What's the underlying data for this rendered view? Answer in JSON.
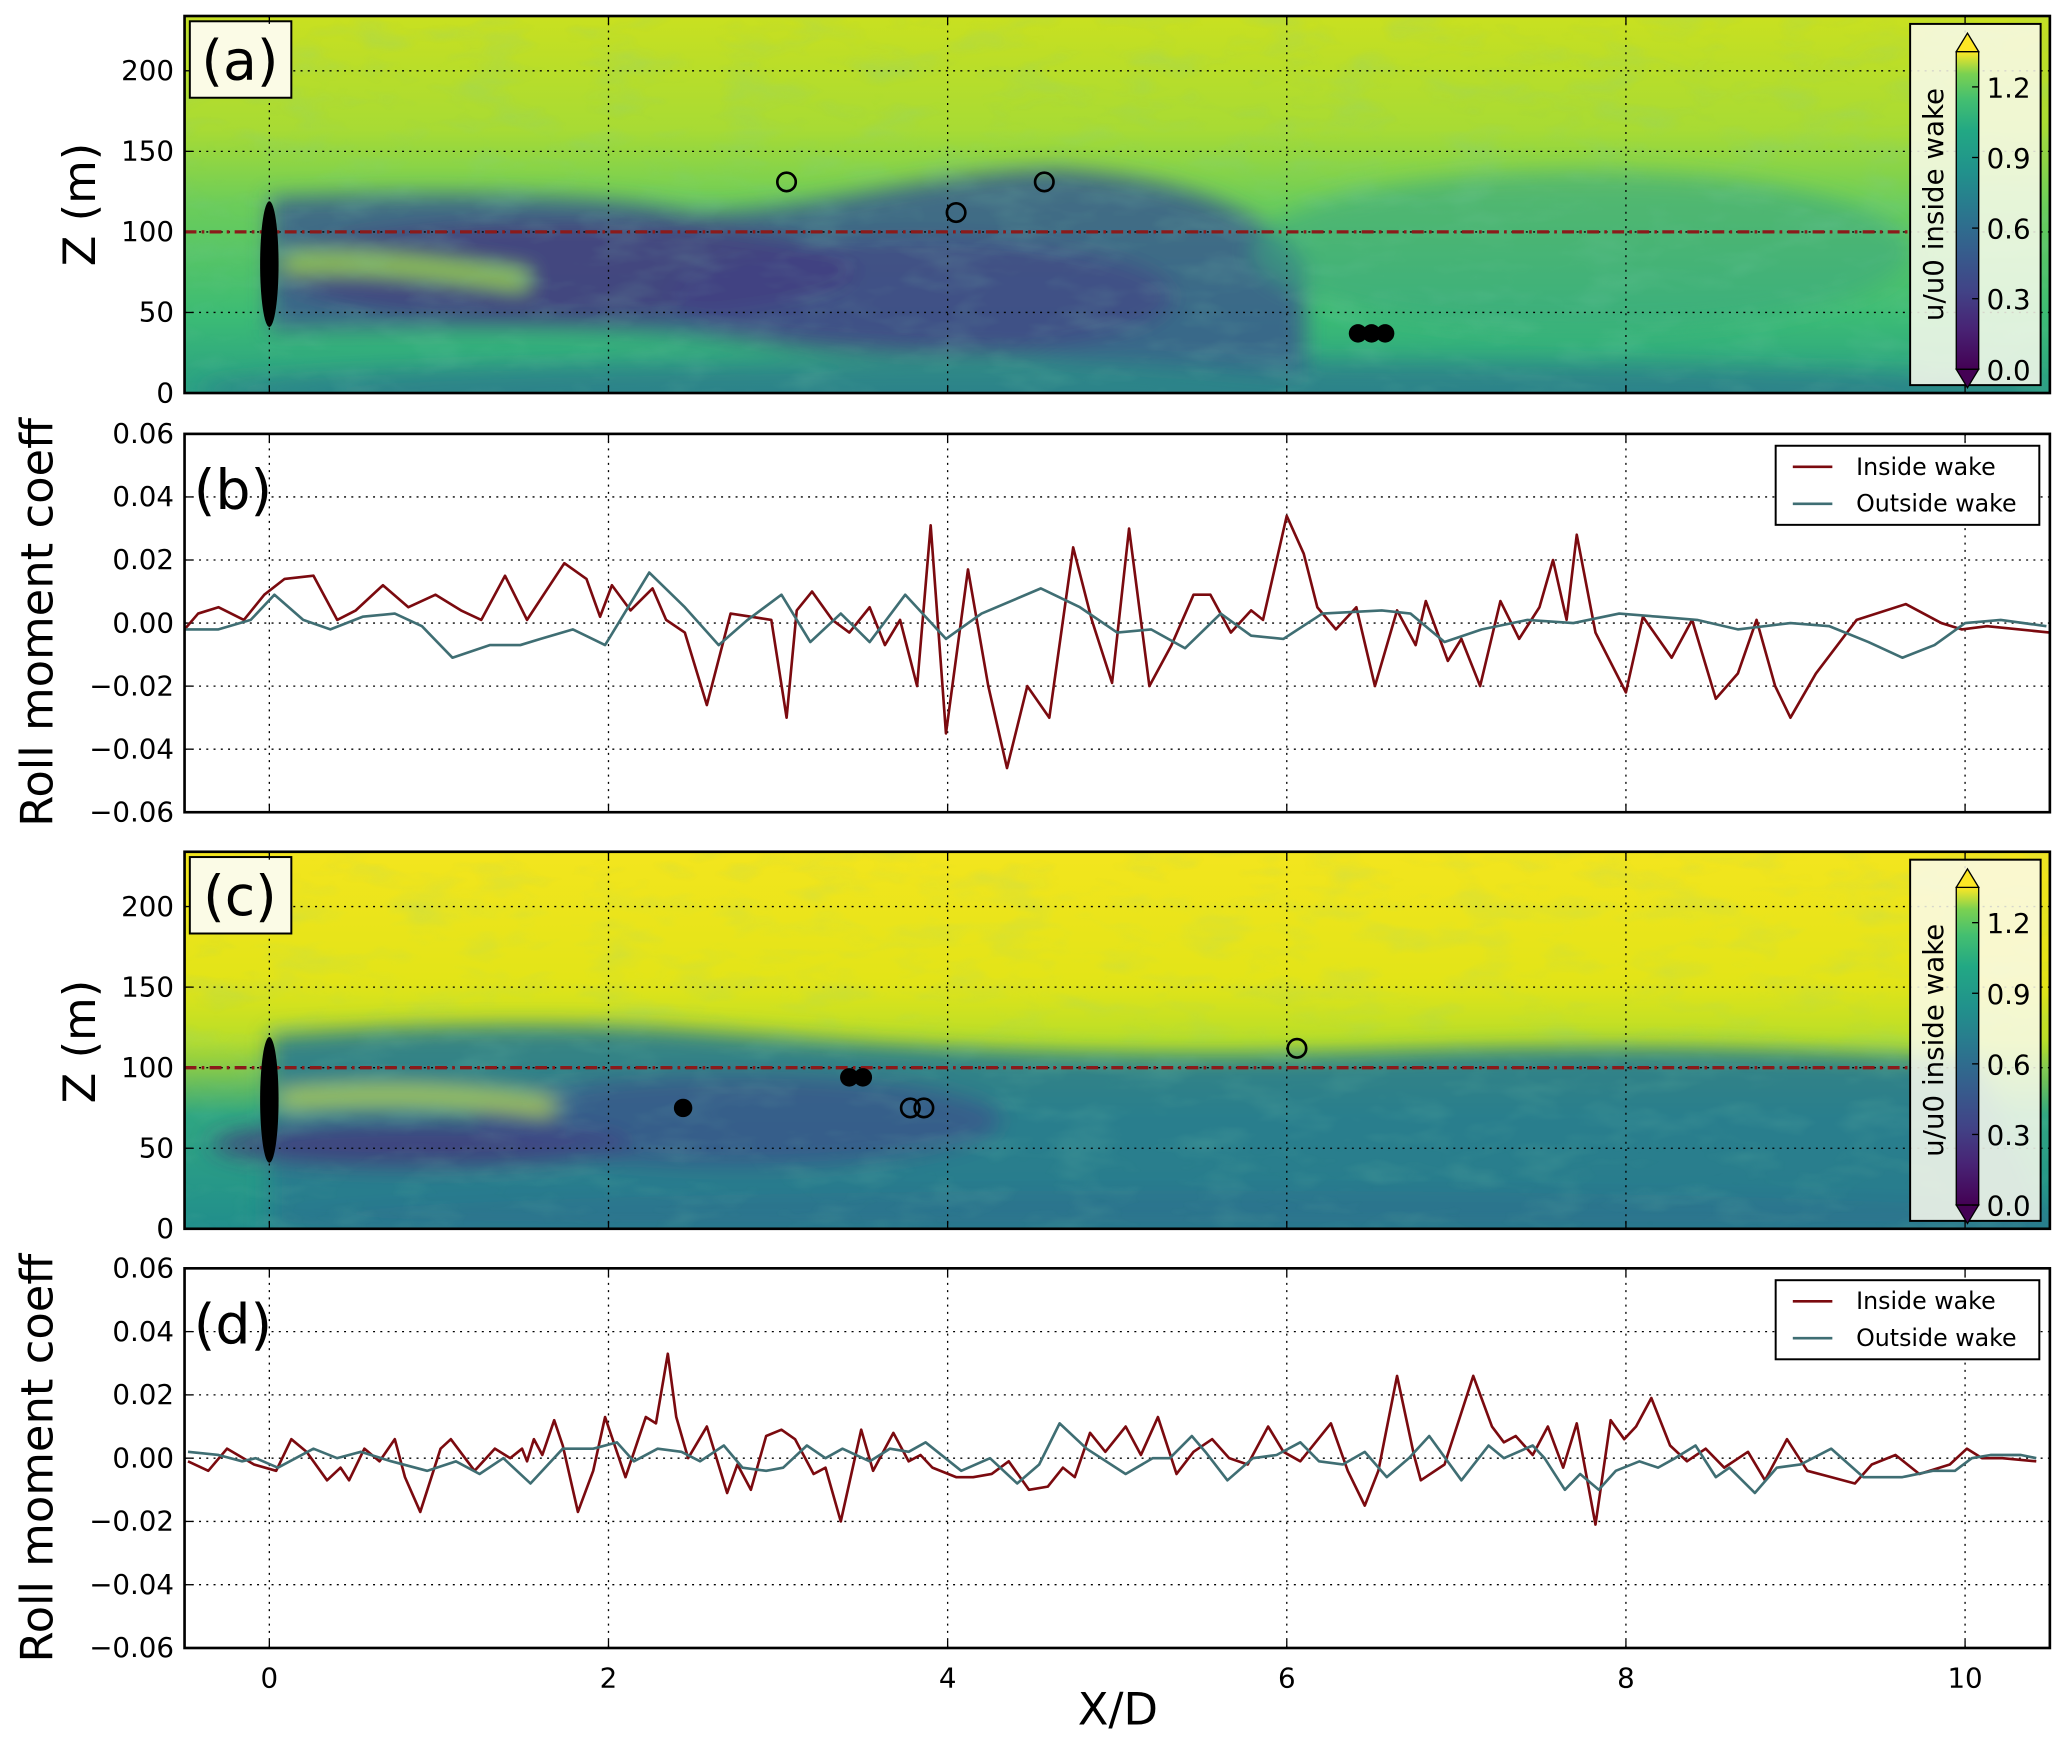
{
  "figure": {
    "xlabel": "X/D",
    "colorbar_label": "u/u0 inside wake",
    "colorbar_ticks": [
      "0.0",
      "0.3",
      "0.6",
      "0.9",
      "1.2"
    ],
    "colormap": "viridis",
    "panel_labels": [
      "(a)",
      "(b)",
      "(c)",
      "(d)"
    ],
    "colors": {
      "inside_wake": "#7b0a0f",
      "outside_wake": "#3f6e73",
      "hub_line": "#8b1a1a"
    }
  },
  "chart_data": [
    {
      "panel": "(a)",
      "type": "heatmap",
      "ylabel": "Z (m)",
      "xlim": [
        -0.5,
        10.5
      ],
      "ylim": [
        0,
        234
      ],
      "yticks": [
        "0",
        "50",
        "100",
        "150",
        "200"
      ],
      "grid": true,
      "colorbar": {
        "label": "u/u0 inside wake",
        "range": [
          0.0,
          1.35
        ],
        "ticks": [
          0.0,
          0.3,
          0.6,
          0.9,
          1.2
        ],
        "extend": "both"
      },
      "hub_height_line": 100,
      "turbine": {
        "x": 0,
        "z_bottom": 41,
        "z_top": 119
      },
      "open_markers": [
        {
          "x": 3.05,
          "z": 131
        },
        {
          "x": 4.05,
          "z": 112
        },
        {
          "x": 4.57,
          "z": 131
        }
      ],
      "filled_markers": [
        {
          "x": 6.42,
          "z": 37
        },
        {
          "x": 6.5,
          "z": 37
        },
        {
          "x": 6.58,
          "z": 37
        }
      ]
    },
    {
      "panel": "(b)",
      "type": "line",
      "ylabel": "Roll moment coeff",
      "xlim": [
        -0.5,
        10.5
      ],
      "ylim": [
        -0.06,
        0.06
      ],
      "yticks": [
        "0.06",
        "0.04",
        "0.02",
        "0.00",
        "−0.02",
        "−0.04",
        "−0.06"
      ],
      "grid": true,
      "legend": "top-right",
      "series": [
        {
          "name": "Inside wake",
          "x": [
            -0.5,
            -0.42,
            -0.3,
            -0.15,
            -0.03,
            0.09,
            0.26,
            0.4,
            0.51,
            0.67,
            0.82,
            0.98,
            1.13,
            1.25,
            1.39,
            1.52,
            1.74,
            1.87,
            1.95,
            2.02,
            2.13,
            2.26,
            2.34,
            2.45,
            2.58,
            2.72,
            2.84,
            2.96,
            3.05,
            3.11,
            3.2,
            3.32,
            3.42,
            3.54,
            3.63,
            3.72,
            3.82,
            3.9,
            3.99,
            4.12,
            4.24,
            4.35,
            4.47,
            4.6,
            4.74,
            4.85,
            4.97,
            5.07,
            5.19,
            5.32,
            5.45,
            5.55,
            5.67,
            5.79,
            5.86,
            6.0,
            6.1,
            6.18,
            6.29,
            6.41,
            6.52,
            6.65,
            6.76,
            6.82,
            6.95,
            7.03,
            7.14,
            7.26,
            7.37,
            7.49,
            7.57,
            7.65,
            7.71,
            7.82,
            8.0,
            8.1,
            8.27,
            8.39,
            8.53,
            8.66,
            8.77,
            8.88,
            8.97,
            9.12,
            9.36,
            9.65,
            9.86,
            9.98,
            10.13,
            10.5
          ],
          "y": [
            -0.002,
            0.003,
            0.005,
            0.001,
            0.009,
            0.014,
            0.015,
            0.001,
            0.004,
            0.012,
            0.005,
            0.009,
            0.004,
            0.001,
            0.015,
            0.001,
            0.019,
            0.014,
            0.002,
            0.012,
            0.004,
            0.011,
            0.001,
            -0.003,
            -0.026,
            0.003,
            0.002,
            0.001,
            -0.03,
            0.004,
            0.01,
            0.001,
            -0.003,
            0.005,
            -0.007,
            0.001,
            -0.02,
            0.031,
            -0.035,
            0.017,
            -0.02,
            -0.046,
            -0.02,
            -0.03,
            0.024,
            0.001,
            -0.019,
            0.03,
            -0.02,
            -0.007,
            0.009,
            0.009,
            -0.003,
            0.004,
            0.001,
            0.034,
            0.022,
            0.005,
            -0.002,
            0.005,
            -0.02,
            0.004,
            -0.007,
            0.007,
            -0.012,
            -0.005,
            -0.02,
            0.007,
            -0.005,
            0.005,
            0.02,
            0.001,
            0.028,
            -0.003,
            -0.022,
            0.002,
            -0.011,
            0.001,
            -0.024,
            -0.016,
            0.001,
            -0.02,
            -0.03,
            -0.016,
            0.001,
            0.006,
            0.0,
            -0.002,
            -0.001,
            -0.003
          ]
        },
        {
          "name": "Outside wake",
          "x": [
            -0.5,
            -0.3,
            -0.11,
            0.03,
            0.2,
            0.36,
            0.55,
            0.74,
            0.9,
            1.08,
            1.3,
            1.48,
            1.6,
            1.79,
            1.98,
            2.24,
            2.45,
            2.65,
            2.82,
            3.02,
            3.19,
            3.37,
            3.54,
            3.75,
            3.99,
            4.2,
            4.55,
            4.78,
            5.0,
            5.2,
            5.4,
            5.61,
            5.79,
            5.98,
            6.21,
            6.56,
            6.73,
            6.93,
            7.15,
            7.42,
            7.69,
            7.96,
            8.19,
            8.42,
            8.66,
            8.97,
            9.2,
            9.43,
            9.63,
            9.82,
            10.0,
            10.21,
            10.48
          ],
          "y": [
            -0.002,
            -0.002,
            0.001,
            0.009,
            0.001,
            -0.002,
            0.002,
            0.003,
            -0.001,
            -0.011,
            -0.007,
            -0.007,
            -0.005,
            -0.002,
            -0.007,
            0.016,
            0.005,
            -0.007,
            0.001,
            0.009,
            -0.006,
            0.003,
            -0.006,
            0.009,
            -0.005,
            0.003,
            0.011,
            0.005,
            -0.003,
            -0.002,
            -0.008,
            0.003,
            -0.004,
            -0.005,
            0.003,
            0.004,
            0.003,
            -0.006,
            -0.002,
            0.001,
            0.0,
            0.003,
            0.002,
            0.001,
            -0.002,
            0.0,
            -0.001,
            -0.006,
            -0.011,
            -0.007,
            0.0,
            0.001,
            -0.001
          ]
        }
      ]
    },
    {
      "panel": "(c)",
      "type": "heatmap",
      "ylabel": "Z (m)",
      "xlim": [
        -0.5,
        10.5
      ],
      "ylim": [
        0,
        234
      ],
      "yticks": [
        "0",
        "50",
        "100",
        "150",
        "200"
      ],
      "grid": true,
      "colorbar": {
        "label": "u/u0 inside wake",
        "range": [
          0.0,
          1.35
        ],
        "ticks": [
          0.0,
          0.3,
          0.6,
          0.9,
          1.2
        ],
        "extend": "both"
      },
      "hub_height_line": 100,
      "turbine": {
        "x": 0,
        "z_bottom": 41,
        "z_top": 119
      },
      "open_markers": [
        {
          "x": 3.78,
          "z": 75
        },
        {
          "x": 3.86,
          "z": 75
        },
        {
          "x": 6.06,
          "z": 112
        }
      ],
      "filled_markers": [
        {
          "x": 2.44,
          "z": 75
        },
        {
          "x": 3.42,
          "z": 94
        },
        {
          "x": 3.5,
          "z": 94
        }
      ]
    },
    {
      "panel": "(d)",
      "type": "line",
      "ylabel": "Roll moment coeff",
      "xlabel": "X/D",
      "xlim": [
        -0.5,
        10.5
      ],
      "xticks": [
        "0",
        "2",
        "4",
        "6",
        "8",
        "10"
      ],
      "ylim": [
        -0.06,
        0.06
      ],
      "yticks": [
        "0.06",
        "0.04",
        "0.02",
        "0.00",
        "−0.02",
        "−0.04",
        "−0.06"
      ],
      "grid": true,
      "legend": "top-right",
      "series": [
        {
          "name": "Inside wake",
          "x": [
            -0.48,
            -0.36,
            -0.25,
            -0.09,
            0.04,
            0.13,
            0.22,
            0.34,
            0.42,
            0.47,
            0.56,
            0.65,
            0.74,
            0.8,
            0.89,
            1.01,
            1.07,
            1.21,
            1.33,
            1.42,
            1.49,
            1.52,
            1.56,
            1.61,
            1.68,
            1.73,
            1.82,
            1.91,
            1.98,
            2.1,
            2.22,
            2.28,
            2.35,
            2.4,
            2.47,
            2.58,
            2.7,
            2.76,
            2.84,
            2.93,
            3.02,
            3.1,
            3.21,
            3.28,
            3.37,
            3.49,
            3.56,
            3.68,
            3.77,
            3.84,
            3.91,
            4.05,
            4.15,
            4.26,
            4.36,
            4.48,
            4.59,
            4.68,
            4.75,
            4.84,
            4.93,
            5.05,
            5.14,
            5.24,
            5.35,
            5.45,
            5.56,
            5.66,
            5.77,
            5.89,
            5.98,
            6.08,
            6.26,
            6.36,
            6.46,
            6.54,
            6.65,
            6.75,
            6.79,
            6.93,
            7.1,
            7.21,
            7.28,
            7.35,
            7.45,
            7.54,
            7.63,
            7.71,
            7.82,
            7.91,
            7.99,
            8.06,
            8.15,
            8.26,
            8.36,
            8.47,
            8.58,
            8.72,
            8.82,
            8.95,
            9.07,
            9.21,
            9.35,
            9.45,
            9.59,
            9.73,
            9.91,
            10.01,
            10.1,
            10.22,
            10.42
          ],
          "y": [
            -0.001,
            -0.004,
            0.003,
            -0.002,
            -0.004,
            0.006,
            0.002,
            -0.007,
            -0.003,
            -0.007,
            0.003,
            -0.001,
            0.006,
            -0.006,
            -0.017,
            0.003,
            0.006,
            -0.004,
            0.003,
            0.0,
            0.003,
            -0.001,
            0.006,
            0.001,
            0.012,
            0.004,
            -0.017,
            -0.004,
            0.013,
            -0.006,
            0.013,
            0.011,
            0.033,
            0.013,
            0.0,
            0.01,
            -0.011,
            -0.002,
            -0.01,
            0.007,
            0.009,
            0.006,
            -0.005,
            -0.003,
            -0.02,
            0.009,
            -0.004,
            0.008,
            -0.001,
            0.001,
            -0.003,
            -0.006,
            -0.006,
            -0.005,
            -0.001,
            -0.01,
            -0.009,
            -0.003,
            -0.006,
            0.008,
            0.002,
            0.01,
            0.001,
            0.013,
            -0.005,
            0.002,
            0.006,
            0.0,
            -0.002,
            0.01,
            0.002,
            -0.001,
            0.011,
            -0.004,
            -0.015,
            -0.004,
            0.026,
            0.001,
            -0.007,
            -0.002,
            0.026,
            0.01,
            0.005,
            0.007,
            0.001,
            0.01,
            -0.003,
            0.011,
            -0.021,
            0.012,
            0.006,
            0.01,
            0.019,
            0.004,
            -0.001,
            0.003,
            -0.003,
            0.002,
            -0.007,
            0.006,
            -0.004,
            -0.006,
            -0.008,
            -0.002,
            0.001,
            -0.005,
            -0.002,
            0.003,
            0.0,
            0.0,
            -0.001
          ]
        },
        {
          "name": "Outside wake",
          "x": [
            -0.48,
            -0.3,
            -0.16,
            -0.08,
            0.05,
            0.26,
            0.4,
            0.54,
            0.72,
            0.93,
            1.1,
            1.24,
            1.38,
            1.54,
            1.73,
            1.91,
            2.05,
            2.15,
            2.29,
            2.43,
            2.54,
            2.68,
            2.79,
            2.93,
            3.03,
            3.17,
            3.28,
            3.38,
            3.54,
            3.66,
            3.77,
            3.87,
            4.08,
            4.25,
            4.41,
            4.54,
            4.66,
            4.82,
            5.05,
            5.21,
            5.31,
            5.44,
            5.52,
            5.65,
            5.8,
            5.94,
            6.08,
            6.19,
            6.33,
            6.46,
            6.59,
            6.72,
            6.84,
            7.03,
            7.19,
            7.28,
            7.45,
            7.52,
            7.64,
            7.73,
            7.84,
            7.94,
            8.08,
            8.19,
            8.29,
            8.41,
            8.53,
            8.61,
            8.76,
            8.89,
            9.03,
            9.21,
            9.4,
            9.63,
            9.81,
            9.94,
            10.04,
            10.15,
            10.33,
            10.42
          ],
          "y": [
            0.002,
            0.001,
            -0.001,
            0.0,
            -0.003,
            0.003,
            0.0,
            0.002,
            -0.001,
            -0.004,
            -0.001,
            -0.005,
            0.0,
            -0.008,
            0.003,
            0.003,
            0.005,
            -0.001,
            0.003,
            0.002,
            -0.001,
            0.004,
            -0.003,
            -0.004,
            -0.003,
            0.004,
            0.0,
            0.003,
            -0.001,
            0.003,
            0.002,
            0.005,
            -0.004,
            0.0,
            -0.008,
            -0.002,
            0.011,
            0.003,
            -0.005,
            0.0,
            0.0,
            0.007,
            0.002,
            -0.007,
            0.0,
            0.001,
            0.005,
            -0.001,
            -0.002,
            0.002,
            -0.006,
            0.0,
            0.007,
            -0.007,
            0.004,
            0.0,
            0.004,
            0.0,
            -0.01,
            -0.005,
            -0.01,
            -0.004,
            -0.001,
            -0.003,
            0.0,
            0.004,
            -0.006,
            -0.003,
            -0.011,
            -0.003,
            -0.002,
            0.003,
            -0.006,
            -0.006,
            -0.004,
            -0.004,
            0.0,
            0.001,
            0.001,
            0.0
          ]
        }
      ]
    }
  ]
}
